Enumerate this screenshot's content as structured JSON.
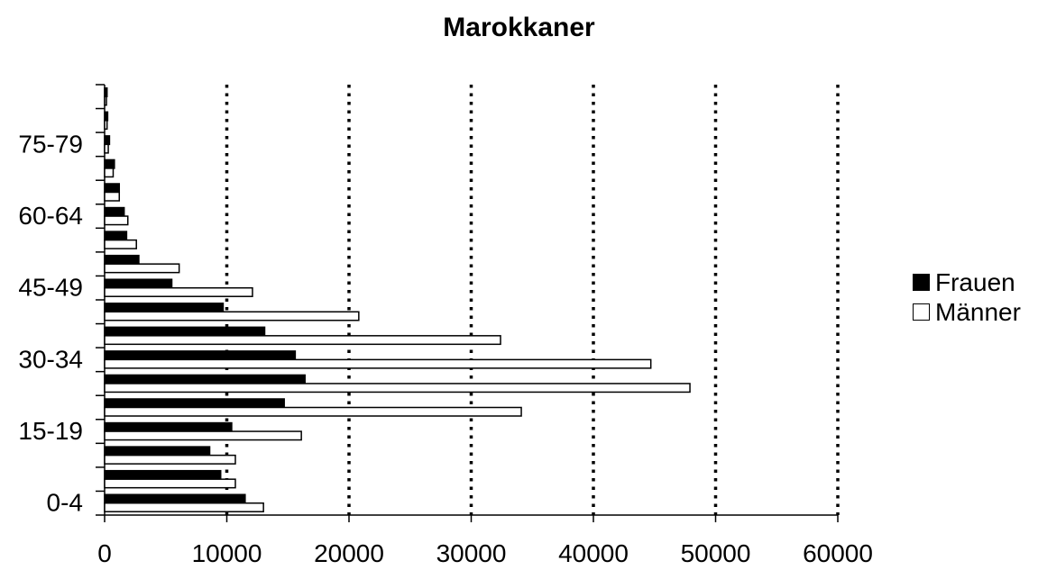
{
  "chart_data": {
    "type": "bar",
    "orientation": "horizontal",
    "title": "Marokkaner",
    "xlabel": "",
    "ylabel": "",
    "xlim": [
      0,
      60000
    ],
    "x_ticks": [
      "0",
      "10000",
      "20000",
      "30000",
      "40000",
      "50000",
      "60000"
    ],
    "categories": [
      "0-4",
      "5-9",
      "10-14",
      "15-19",
      "20-24",
      "25-29",
      "30-34",
      "35-39",
      "40-44",
      "45-49",
      "50-54",
      "55-59",
      "60-64",
      "65-69",
      "70-74",
      "75-79",
      "80-84",
      "85-89"
    ],
    "visible_category_labels": [
      "0-4",
      "15-19",
      "30-34",
      "45-49",
      "60-64",
      "75-79"
    ],
    "series": [
      {
        "name": "Frauen",
        "color": "#000000",
        "values": [
          11500,
          9500,
          8600,
          10400,
          14700,
          16400,
          15600,
          13100,
          9700,
          5500,
          2800,
          1800,
          1600,
          1200,
          800,
          400,
          250,
          200
        ]
      },
      {
        "name": "Männer",
        "color": "#ffffff",
        "values": [
          13000,
          10700,
          10700,
          16100,
          34100,
          47900,
          44700,
          32400,
          20800,
          12100,
          6100,
          2600,
          1900,
          1200,
          700,
          300,
          200,
          150
        ]
      }
    ],
    "grid": {
      "x_major": true,
      "style": "dotted"
    },
    "legend": {
      "position": "right"
    }
  }
}
